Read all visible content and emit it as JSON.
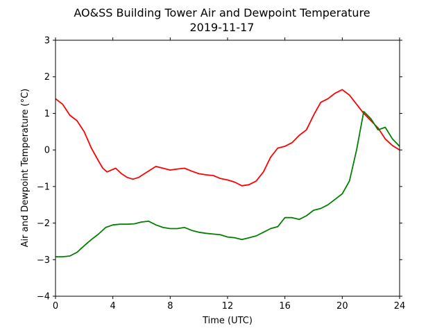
{
  "chart_data": {
    "type": "line",
    "title": "AO&SS Building Tower Air and Dewpoint Temperature",
    "subtitle": "2019-11-17",
    "xlabel": "Time (UTC)",
    "ylabel": "Air and Dewpoint Temperature (°C)",
    "xlim": [
      0,
      24
    ],
    "ylim": [
      -4,
      3
    ],
    "x_ticks": [
      0,
      4,
      8,
      12,
      16,
      20,
      24
    ],
    "y_ticks": [
      -4,
      -3,
      -2,
      -1,
      0,
      1,
      2,
      3
    ],
    "grid": false,
    "legend": "none",
    "series": [
      {
        "color": "#ff0000",
        "x": [
          0,
          0.5,
          1,
          1.5,
          2,
          2.5,
          3,
          3.3,
          3.6,
          3.9,
          4.2,
          4.6,
          5,
          5.4,
          5.8,
          6.2,
          6.6,
          7,
          7.5,
          8,
          8.5,
          9,
          9.5,
          10,
          10.5,
          11,
          11.5,
          12,
          12.5,
          13,
          13.5,
          14,
          14.5,
          15,
          15.5,
          16,
          16.5,
          17,
          17.5,
          18,
          18.5,
          19,
          19.5,
          20,
          20.5,
          21,
          21.5,
          22,
          22.5,
          23,
          23.5,
          24
        ],
        "values": [
          1.4,
          1.25,
          0.95,
          0.8,
          0.5,
          0.05,
          -0.3,
          -0.5,
          -0.6,
          -0.55,
          -0.5,
          -0.65,
          -0.75,
          -0.8,
          -0.75,
          -0.65,
          -0.55,
          -0.45,
          -0.5,
          -0.55,
          -0.52,
          -0.5,
          -0.58,
          -0.65,
          -0.68,
          -0.7,
          -0.78,
          -0.82,
          -0.88,
          -0.98,
          -0.95,
          -0.85,
          -0.6,
          -0.2,
          0.05,
          0.1,
          0.2,
          0.4,
          0.55,
          0.95,
          1.3,
          1.4,
          1.55,
          1.65,
          1.5,
          1.25,
          1.0,
          0.8,
          0.6,
          0.3,
          0.12,
          0.0
        ]
      },
      {
        "color": "#008000",
        "x": [
          0,
          0.5,
          1,
          1.5,
          2,
          2.5,
          3,
          3.5,
          4,
          4.5,
          5,
          5.5,
          6,
          6.5,
          7,
          7.5,
          8,
          8.5,
          9,
          9.5,
          10,
          10.5,
          11,
          11.5,
          12,
          12.5,
          13,
          13.5,
          14,
          14.5,
          15,
          15.5,
          16,
          16.5,
          17,
          17.5,
          18,
          18.5,
          19,
          19.5,
          20,
          20.5,
          21,
          21.5,
          22,
          22.5,
          23,
          23.5,
          24
        ],
        "values": [
          -2.92,
          -2.92,
          -2.9,
          -2.8,
          -2.62,
          -2.45,
          -2.3,
          -2.12,
          -2.05,
          -2.03,
          -2.03,
          -2.02,
          -1.97,
          -1.95,
          -2.05,
          -2.12,
          -2.15,
          -2.15,
          -2.12,
          -2.2,
          -2.25,
          -2.28,
          -2.3,
          -2.32,
          -2.38,
          -2.4,
          -2.45,
          -2.4,
          -2.35,
          -2.25,
          -2.15,
          -2.1,
          -1.85,
          -1.85,
          -1.9,
          -1.8,
          -1.65,
          -1.6,
          -1.5,
          -1.35,
          -1.2,
          -0.85,
          0.0,
          1.05,
          0.85,
          0.55,
          0.62,
          0.3,
          0.1
        ]
      }
    ]
  }
}
